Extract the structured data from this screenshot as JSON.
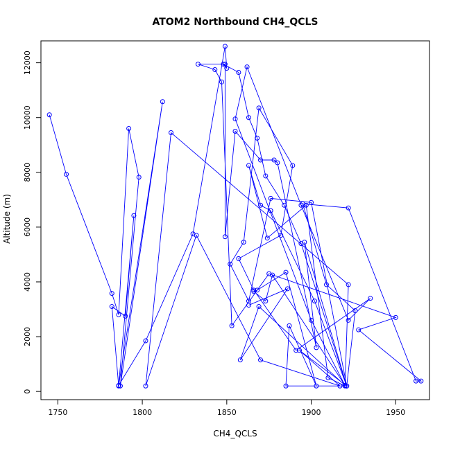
{
  "colors": {
    "series": "#0000ff",
    "axis": "#000000",
    "background": "#ffffff"
  },
  "chart_data": {
    "type": "line",
    "title": "ATOM2 Northbound CH4_QCLS",
    "xlabel": "CH4_QCLS",
    "ylabel": "Altitude (m)",
    "xlim": [
      1740,
      1970
    ],
    "ylim": [
      -300,
      12800
    ],
    "xticks": [
      1750,
      1800,
      1850,
      1900,
      1950
    ],
    "yticks": [
      0,
      2000,
      4000,
      6000,
      8000,
      10000,
      12000
    ],
    "grid": false,
    "markers": "open-circle",
    "series": [
      {
        "x": [
          1745,
          1755,
          1782,
          1786,
          1792,
          1798,
          1787,
          1812,
          1786,
          1782,
          1790,
          1795,
          1786,
          1802,
          1830,
          1849,
          1850,
          1848,
          1857,
          1863,
          1868,
          1873,
          1884,
          1894,
          1921,
          1926,
          1909,
          1895,
          1922,
          1962,
          1965,
          1928,
          1950,
          1875,
          1853,
          1847,
          1843,
          1833,
          1849,
          1849,
          1855,
          1870,
          1878,
          1880,
          1903,
          1896,
          1921,
          1900,
          1876,
          1863,
          1852,
          1860,
          1869,
          1889,
          1882,
          1857,
          1866,
          1891,
          1935,
          1922,
          1894,
          1862,
          1855,
          1900,
          1920,
          1877,
          1873,
          1866,
          1868,
          1885,
          1903,
          1887,
          1885,
          1920,
          1910,
          1897,
          1874,
          1863,
          1870,
          1876,
          1902,
          1921,
          1893,
          1917,
          1870,
          1832,
          1802,
          1817,
          1922,
          1920,
          1869,
          1858,
          1886,
          1863
        ],
        "y": [
          10100,
          7930,
          3580,
          2800,
          9600,
          7820,
          200,
          10580,
          200,
          3100,
          2750,
          6420,
          220,
          1850,
          5750,
          12600,
          11800,
          11950,
          11650,
          10000,
          9250,
          7870,
          6800,
          5400,
          200,
          2950,
          3900,
          6850,
          6700,
          380,
          380,
          2250,
          2700,
          4300,
          2400,
          11300,
          11750,
          11950,
          11950,
          5650,
          9500,
          8450,
          8450,
          8350,
          1600,
          5450,
          200,
          6900,
          7050,
          3300,
          4650,
          5450,
          10350,
          8250,
          5700,
          4850,
          3700,
          1500,
          3400,
          2600,
          6800,
          11850,
          9950,
          2600,
          220,
          4250,
          3300,
          3650,
          3700,
          4350,
          200,
          2400,
          200,
          200,
          500,
          6800,
          5600,
          8250,
          6800,
          6600,
          3300,
          200,
          1500,
          200,
          1150,
          5700,
          200,
          9450,
          3900,
          220,
          3100,
          1150,
          3750,
          3150
        ]
      }
    ]
  }
}
